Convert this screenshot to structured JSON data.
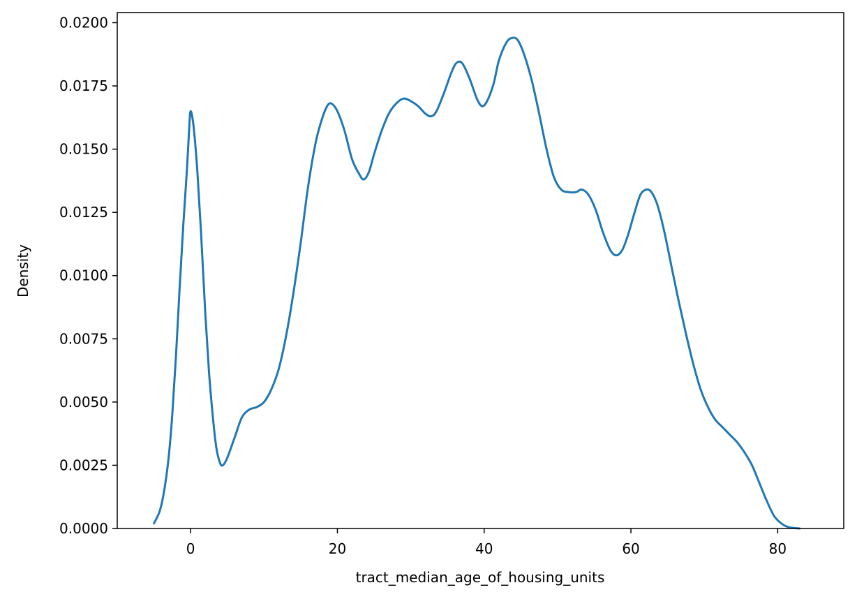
{
  "chart_data": {
    "type": "line",
    "title": "",
    "xlabel": "tract_median_age_of_housing_units",
    "ylabel": "Density",
    "xlim": [
      -10,
      89
    ],
    "ylim": [
      0,
      0.0204
    ],
    "grid": false,
    "x_ticks": [
      {
        "value": 0,
        "label": "0"
      },
      {
        "value": 20,
        "label": "20"
      },
      {
        "value": 40,
        "label": "40"
      },
      {
        "value": 60,
        "label": "60"
      },
      {
        "value": 80,
        "label": "80"
      }
    ],
    "y_ticks": [
      {
        "value": 0.0,
        "label": "0.0000"
      },
      {
        "value": 0.0025,
        "label": "0.0025"
      },
      {
        "value": 0.005,
        "label": "0.0050"
      },
      {
        "value": 0.0075,
        "label": "0.0075"
      },
      {
        "value": 0.01,
        "label": "0.0100"
      },
      {
        "value": 0.0125,
        "label": "0.0125"
      },
      {
        "value": 0.015,
        "label": "0.0150"
      },
      {
        "value": 0.0175,
        "label": "0.0175"
      },
      {
        "value": 0.02,
        "label": "0.0200"
      }
    ],
    "series": [
      {
        "color": "#1f77b4",
        "points": [
          [
            -5.0,
            0.0002
          ],
          [
            -4.2,
            0.0007
          ],
          [
            -3.6,
            0.0015
          ],
          [
            -3.0,
            0.0028
          ],
          [
            -2.5,
            0.0045
          ],
          [
            -2.0,
            0.0068
          ],
          [
            -1.5,
            0.0095
          ],
          [
            -1.0,
            0.012
          ],
          [
            -0.5,
            0.0142
          ],
          [
            -0.2,
            0.0158
          ],
          [
            0.0,
            0.0165
          ],
          [
            0.4,
            0.0159
          ],
          [
            0.9,
            0.0142
          ],
          [
            1.4,
            0.0118
          ],
          [
            2.0,
            0.0085
          ],
          [
            2.5,
            0.0062
          ],
          [
            3.0,
            0.0045
          ],
          [
            3.5,
            0.0032
          ],
          [
            4.0,
            0.0026
          ],
          [
            4.4,
            0.0025
          ],
          [
            5.0,
            0.0028
          ],
          [
            6.0,
            0.0036
          ],
          [
            7.0,
            0.0044
          ],
          [
            8.0,
            0.0047
          ],
          [
            9.0,
            0.0048
          ],
          [
            10.0,
            0.005
          ],
          [
            11.0,
            0.0055
          ],
          [
            12.0,
            0.0063
          ],
          [
            13.0,
            0.0076
          ],
          [
            14.0,
            0.0093
          ],
          [
            15.0,
            0.0113
          ],
          [
            16.0,
            0.0135
          ],
          [
            17.0,
            0.0152
          ],
          [
            17.8,
            0.0161
          ],
          [
            18.6,
            0.0167
          ],
          [
            19.2,
            0.0168
          ],
          [
            20.0,
            0.0165
          ],
          [
            21.0,
            0.0157
          ],
          [
            22.0,
            0.0146
          ],
          [
            23.0,
            0.014
          ],
          [
            23.6,
            0.0138
          ],
          [
            24.3,
            0.0141
          ],
          [
            25.0,
            0.0148
          ],
          [
            26.0,
            0.0157
          ],
          [
            27.0,
            0.0164
          ],
          [
            28.0,
            0.0168
          ],
          [
            29.0,
            0.017
          ],
          [
            30.0,
            0.0169
          ],
          [
            31.0,
            0.0167
          ],
          [
            32.0,
            0.0164
          ],
          [
            32.8,
            0.0163
          ],
          [
            33.5,
            0.0165
          ],
          [
            34.5,
            0.0172
          ],
          [
            35.5,
            0.018
          ],
          [
            36.2,
            0.0184
          ],
          [
            37.0,
            0.0184
          ],
          [
            38.0,
            0.0178
          ],
          [
            39.0,
            0.017
          ],
          [
            39.7,
            0.0167
          ],
          [
            40.4,
            0.0169
          ],
          [
            41.3,
            0.0176
          ],
          [
            42.0,
            0.0185
          ],
          [
            43.0,
            0.0192
          ],
          [
            43.8,
            0.0194
          ],
          [
            44.6,
            0.0193
          ],
          [
            45.5,
            0.0187
          ],
          [
            46.5,
            0.0177
          ],
          [
            47.5,
            0.0164
          ],
          [
            48.5,
            0.015
          ],
          [
            49.5,
            0.0139
          ],
          [
            50.5,
            0.0134
          ],
          [
            51.5,
            0.0133
          ],
          [
            52.5,
            0.0133
          ],
          [
            53.3,
            0.0134
          ],
          [
            54.2,
            0.0132
          ],
          [
            55.2,
            0.0126
          ],
          [
            56.2,
            0.0117
          ],
          [
            57.2,
            0.011
          ],
          [
            58.0,
            0.0108
          ],
          [
            58.8,
            0.011
          ],
          [
            59.6,
            0.0116
          ],
          [
            60.5,
            0.0125
          ],
          [
            61.3,
            0.0132
          ],
          [
            62.1,
            0.0134
          ],
          [
            62.8,
            0.0133
          ],
          [
            63.6,
            0.0128
          ],
          [
            64.5,
            0.0118
          ],
          [
            65.5,
            0.0104
          ],
          [
            66.5,
            0.009
          ],
          [
            67.5,
            0.0077
          ],
          [
            68.5,
            0.0065
          ],
          [
            69.5,
            0.0055
          ],
          [
            70.5,
            0.0048
          ],
          [
            71.5,
            0.0043
          ],
          [
            72.5,
            0.004
          ],
          [
            73.5,
            0.0037
          ],
          [
            74.5,
            0.0034
          ],
          [
            75.5,
            0.003
          ],
          [
            76.5,
            0.0025
          ],
          [
            77.5,
            0.0018
          ],
          [
            78.5,
            0.0011
          ],
          [
            79.5,
            0.0005
          ],
          [
            80.5,
            0.0002
          ],
          [
            81.5,
            5e-05
          ],
          [
            83.0,
            0.0
          ]
        ]
      }
    ]
  }
}
